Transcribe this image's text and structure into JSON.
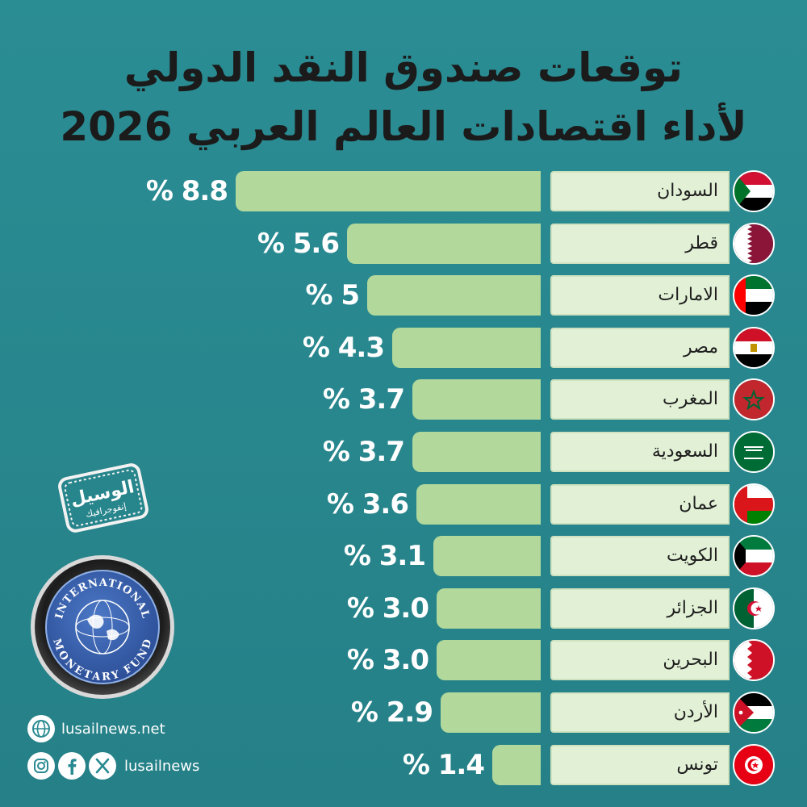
{
  "title_line1": "توقعات صندوق النقد الدولي",
  "title_line2": "لأداء اقتصادات العالم العربي 2026",
  "chart_data": {
    "type": "bar",
    "orientation": "horizontal",
    "categories": [
      "السودان",
      "قطر",
      "الامارات",
      "مصر",
      "المغرب",
      "السعودية",
      "عمان",
      "الكويت",
      "الجزائر",
      "البحرين",
      "الأردن",
      "تونس"
    ],
    "values": [
      8.8,
      5.6,
      5,
      4.3,
      3.7,
      3.7,
      3.6,
      3.1,
      3.0,
      3.0,
      2.9,
      1.4
    ],
    "value_labels": [
      "% 8.8",
      "% 5.6",
      "% 5",
      "% 4.3",
      "% 3.7",
      "% 3.7",
      "% 3.6",
      "% 3.1",
      "% 3.0",
      "% 3.0",
      "% 2.9",
      "% 1.4"
    ],
    "flags": [
      "sudan-flag-icon",
      "qatar-flag-icon",
      "uae-flag-icon",
      "egypt-flag-icon",
      "morocco-flag-icon",
      "saudi-flag-icon",
      "oman-flag-icon",
      "kuwait-flag-icon",
      "algeria-flag-icon",
      "bahrain-flag-icon",
      "jordan-flag-icon",
      "tunisia-flag-icon"
    ]
  },
  "logo_text": "INTERNATIONAL MONETARY FUND",
  "stamp_text": "الوسيل",
  "stamp_subtext": "إنفوجرافيك",
  "footer": {
    "website": "lusailnews.net",
    "handle": "lusailnews"
  },
  "colors": {
    "background": "#2a8a91",
    "bar": "#b2d99b",
    "label_box": "#e2f1d6",
    "title": "#1b1b1b",
    "value_text": "#ffffff"
  }
}
